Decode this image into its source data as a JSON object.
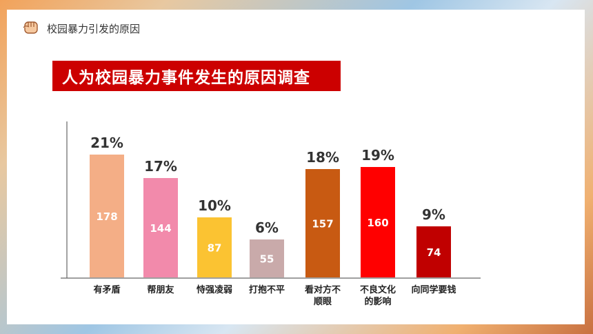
{
  "header": {
    "title": "校园暴力引发的原因",
    "icon": "fist-icon"
  },
  "banner": {
    "text": "人为校园暴力事件发生的原因调查",
    "color": "#cc0000"
  },
  "chart_data": {
    "type": "bar",
    "title": "人为校园暴力事件发生的原因调查",
    "categories": [
      [
        "有矛盾"
      ],
      [
        "帮朋友"
      ],
      [
        "恃强凌弱"
      ],
      [
        "打抱不平"
      ],
      [
        "看对方不",
        "顺眼"
      ],
      [
        "不良文化",
        "的影响"
      ],
      [
        "向同学要钱"
      ]
    ],
    "values": [
      178,
      144,
      87,
      55,
      157,
      160,
      74
    ],
    "percent_labels": [
      "21%",
      "17%",
      "10%",
      "6%",
      "18%",
      "19%",
      "9%"
    ],
    "colors": [
      "#f4ae86",
      "#f28aab",
      "#fbc332",
      "#c9aaaa",
      "#c85a12",
      "#ff0000",
      "#c00000"
    ],
    "ylim": [
      0,
      190
    ],
    "grid": false,
    "legend": "none"
  }
}
